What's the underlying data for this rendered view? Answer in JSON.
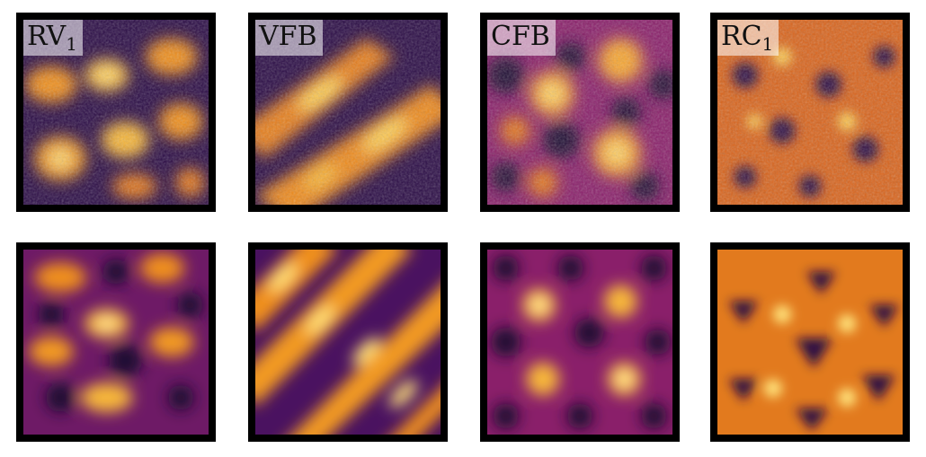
{
  "panels": [
    {
      "label_main": "RV",
      "label_sub": "1",
      "pattern": "noisy-blobs",
      "row": "measured"
    },
    {
      "label_main": "VFB",
      "label_sub": "",
      "pattern": "noisy-diagonal-stripes",
      "row": "measured"
    },
    {
      "label_main": "CFB",
      "label_sub": "",
      "pattern": "noisy-round-blobs",
      "row": "measured"
    },
    {
      "label_main": "RC",
      "label_sub": "1",
      "pattern": "noisy-network",
      "row": "measured"
    }
  ],
  "colors": {
    "colormap": "inferno",
    "dark": "#1a0933",
    "mid": "#b3236e",
    "orange": "#f28a1e",
    "bright": "#fff2a8",
    "frame": "#000000"
  }
}
